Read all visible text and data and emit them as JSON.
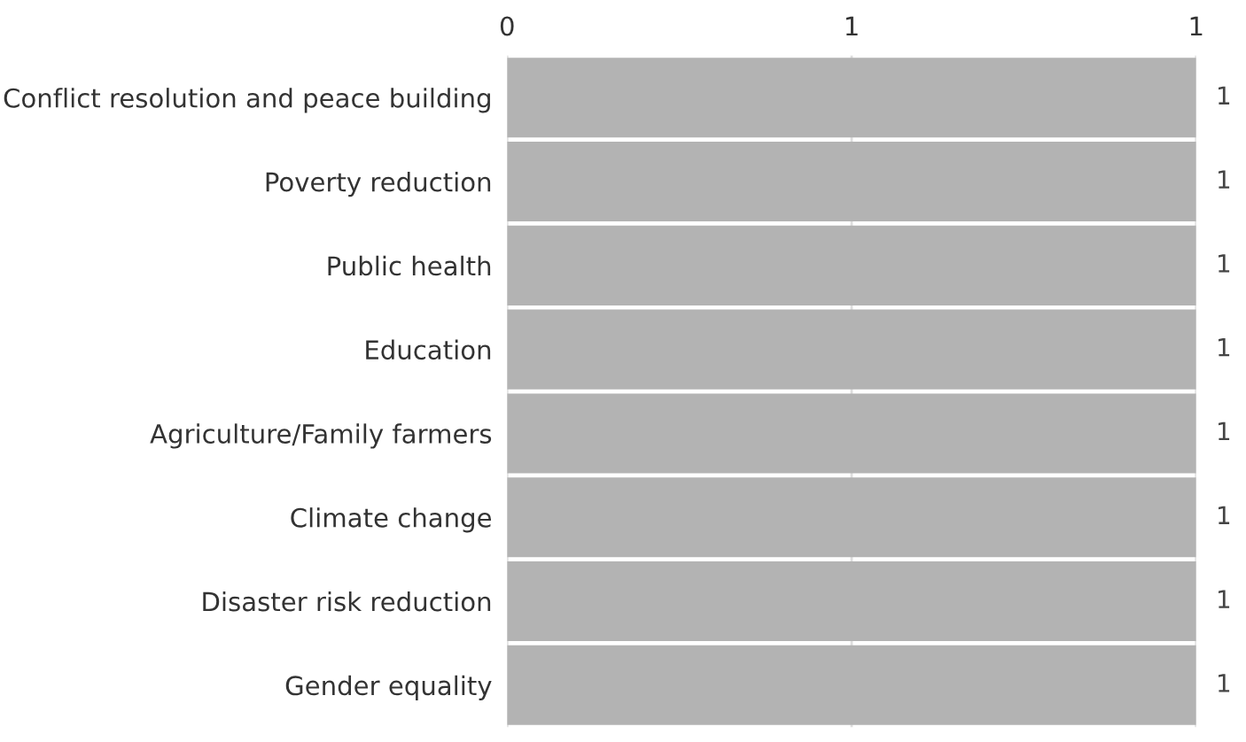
{
  "chart_data": {
    "type": "bar",
    "orientation": "horizontal",
    "categories": [
      "Conflict resolution and peace building",
      "Poverty reduction",
      "Public health",
      "Education",
      "Agriculture/Family farmers",
      "Climate change",
      "Disaster risk reduction",
      "Gender equality"
    ],
    "values": [
      1,
      1,
      1,
      1,
      1,
      1,
      1,
      1
    ],
    "color": "#b3b3b3",
    "xlim": [
      0,
      1
    ],
    "xticks": [
      0,
      {
        "value": 0.5,
        "label": "1"
      },
      1
    ],
    "grid": "x",
    "data_labels": true
  }
}
